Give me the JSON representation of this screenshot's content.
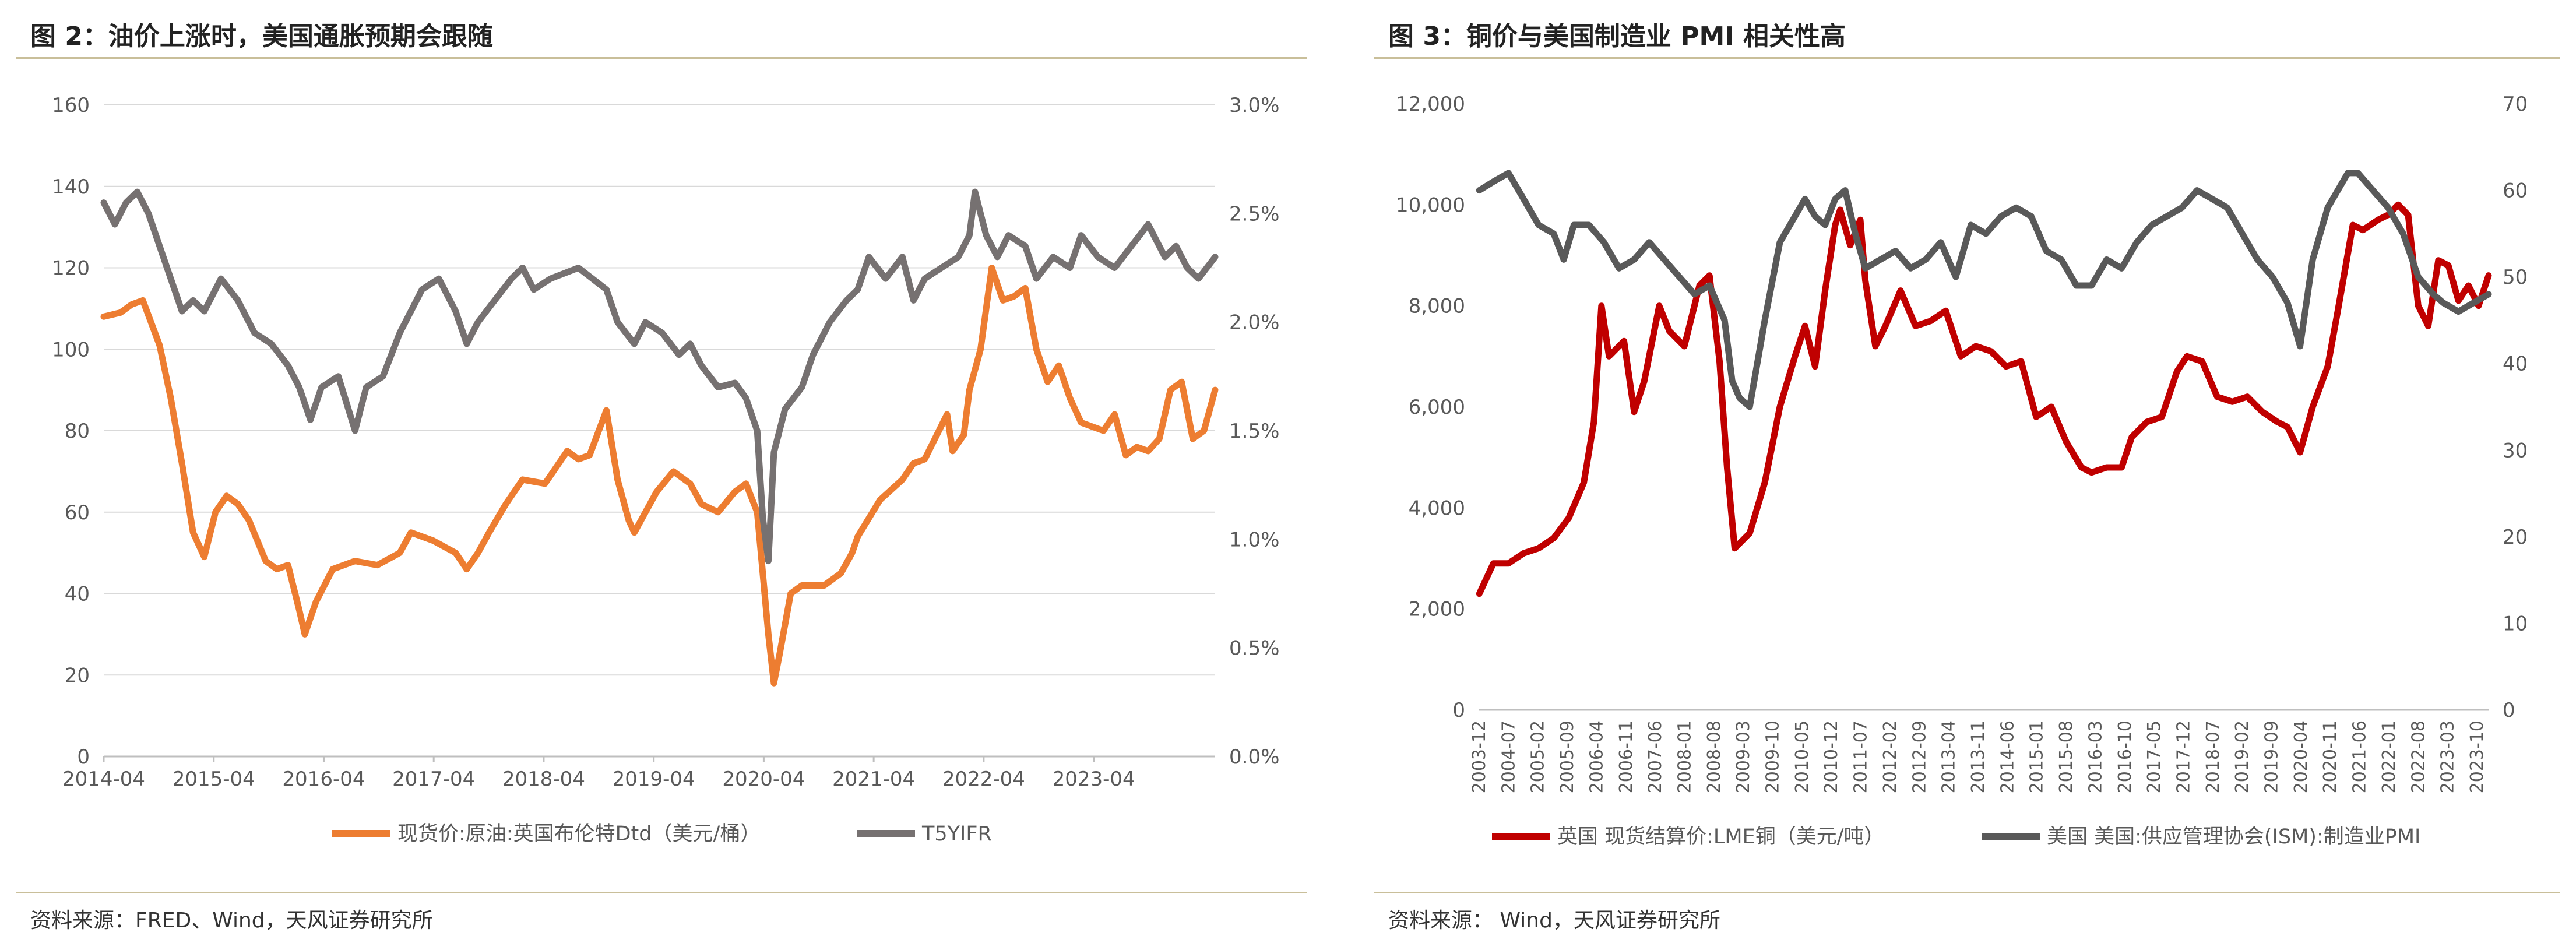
{
  "left": {
    "title": "图 2：油价上涨时，美国通胀预期会跟随",
    "source": "资料来源：FRED、Wind，天风证券研究所"
  },
  "right": {
    "title": "图 3：铜价与美国制造业 PMI 相关性高",
    "source": "资料来源： Wind，天风证券研究所"
  },
  "chart_data": [
    {
      "type": "line",
      "title": "图 2：油价上涨时，美国通胀预期会跟随",
      "x_ticks": [
        "2014-04",
        "2015-04",
        "2016-04",
        "2017-04",
        "2018-04",
        "2019-04",
        "2020-04",
        "2021-04",
        "2022-04",
        "2023-04"
      ],
      "x_range": [
        2014.25,
        2024.2
      ],
      "y_left": {
        "range": [
          0,
          160
        ],
        "ticks": [
          "0",
          "20",
          "40",
          "60",
          "80",
          "100",
          "120",
          "140",
          "160"
        ]
      },
      "y_right": {
        "range": [
          0,
          3.0
        ],
        "ticks": [
          "0.0%",
          "0.5%",
          "1.0%",
          "1.5%",
          "2.0%",
          "2.5%",
          "3.0%"
        ]
      },
      "legend_position": "bottom",
      "series": [
        {
          "name": "现货价:原油:英国布伦特Dtd（美元/桶）",
          "axis": "left",
          "color": "#ed7d31",
          "x": [
            2014.25,
            2014.4,
            2014.5,
            2014.6,
            2014.75,
            2014.85,
            2014.95,
            2015.05,
            2015.15,
            2015.25,
            2015.35,
            2015.45,
            2015.55,
            2015.7,
            2015.8,
            2015.9,
            2016.0,
            2016.05,
            2016.15,
            2016.3,
            2016.5,
            2016.7,
            2016.9,
            2017.0,
            2017.2,
            2017.4,
            2017.5,
            2017.6,
            2017.7,
            2017.85,
            2018.0,
            2018.2,
            2018.4,
            2018.5,
            2018.6,
            2018.75,
            2018.85,
            2018.95,
            2019.0,
            2019.2,
            2019.35,
            2019.5,
            2019.6,
            2019.75,
            2019.9,
            2020.0,
            2020.1,
            2020.2,
            2020.25,
            2020.3,
            2020.4,
            2020.5,
            2020.7,
            2020.85,
            2020.95,
            2021.0,
            2021.2,
            2021.4,
            2021.5,
            2021.6,
            2021.8,
            2021.85,
            2021.95,
            2022.0,
            2022.1,
            2022.2,
            2022.3,
            2022.4,
            2022.5,
            2022.6,
            2022.7,
            2022.8,
            2022.9,
            2023.0,
            2023.2,
            2023.3,
            2023.4,
            2023.5,
            2023.6,
            2023.7,
            2023.8,
            2023.9,
            2024.0,
            2024.1,
            2024.2
          ],
          "values": [
            108,
            109,
            111,
            112,
            101,
            88,
            72,
            55,
            49,
            60,
            64,
            62,
            58,
            48,
            46,
            47,
            36,
            30,
            38,
            46,
            48,
            47,
            50,
            55,
            53,
            50,
            46,
            50,
            55,
            62,
            68,
            67,
            75,
            73,
            74,
            85,
            68,
            58,
            55,
            65,
            70,
            67,
            62,
            60,
            65,
            67,
            60,
            30,
            18,
            25,
            40,
            42,
            42,
            45,
            50,
            54,
            63,
            68,
            72,
            73,
            84,
            75,
            79,
            90,
            100,
            120,
            112,
            113,
            115,
            100,
            92,
            96,
            88,
            82,
            80,
            84,
            74,
            76,
            75,
            78,
            90,
            92,
            78,
            80,
            90
          ]
        },
        {
          "name": "T5YIFR",
          "axis": "right",
          "color": "#767171",
          "x": [
            2014.25,
            2014.35,
            2014.45,
            2014.55,
            2014.65,
            2014.75,
            2014.85,
            2014.95,
            2015.05,
            2015.15,
            2015.3,
            2015.45,
            2015.6,
            2015.75,
            2015.9,
            2016.0,
            2016.1,
            2016.2,
            2016.35,
            2016.5,
            2016.6,
            2016.75,
            2016.9,
            2017.0,
            2017.1,
            2017.25,
            2017.4,
            2017.5,
            2017.6,
            2017.75,
            2017.9,
            2018.0,
            2018.1,
            2018.25,
            2018.5,
            2018.75,
            2018.85,
            2019.0,
            2019.1,
            2019.25,
            2019.4,
            2019.5,
            2019.6,
            2019.75,
            2019.9,
            2020.0,
            2020.1,
            2020.15,
            2020.2,
            2020.25,
            2020.35,
            2020.5,
            2020.6,
            2020.75,
            2020.9,
            2021.0,
            2021.1,
            2021.25,
            2021.4,
            2021.5,
            2021.6,
            2021.75,
            2021.9,
            2022.0,
            2022.05,
            2022.15,
            2022.25,
            2022.35,
            2022.5,
            2022.6,
            2022.75,
            2022.9,
            2023.0,
            2023.15,
            2023.3,
            2023.45,
            2023.6,
            2023.75,
            2023.85,
            2023.95,
            2024.05,
            2024.2
          ],
          "values": [
            2.55,
            2.45,
            2.55,
            2.6,
            2.5,
            2.35,
            2.2,
            2.05,
            2.1,
            2.05,
            2.2,
            2.1,
            1.95,
            1.9,
            1.8,
            1.7,
            1.55,
            1.7,
            1.75,
            1.5,
            1.7,
            1.75,
            1.95,
            2.05,
            2.15,
            2.2,
            2.05,
            1.9,
            2.0,
            2.1,
            2.2,
            2.25,
            2.15,
            2.2,
            2.25,
            2.15,
            2.0,
            1.9,
            2.0,
            1.95,
            1.85,
            1.9,
            1.8,
            1.7,
            1.72,
            1.65,
            1.5,
            1.1,
            0.9,
            1.4,
            1.6,
            1.7,
            1.85,
            2.0,
            2.1,
            2.15,
            2.3,
            2.2,
            2.3,
            2.1,
            2.2,
            2.25,
            2.3,
            2.4,
            2.6,
            2.4,
            2.3,
            2.4,
            2.35,
            2.2,
            2.3,
            2.25,
            2.4,
            2.3,
            2.25,
            2.35,
            2.45,
            2.3,
            2.35,
            2.25,
            2.2,
            2.3
          ]
        }
      ]
    },
    {
      "type": "line",
      "title": "图 3：铜价与美国制造业 PMI 相关性高",
      "x_ticks": [
        "2003-12",
        "2004-07",
        "2005-02",
        "2005-09",
        "2006-04",
        "2006-11",
        "2007-06",
        "2008-01",
        "2008-08",
        "2009-03",
        "2009-10",
        "2010-05",
        "2010-12",
        "2011-07",
        "2012-02",
        "2012-09",
        "2013-04",
        "2013-11",
        "2014-06",
        "2015-01",
        "2015-08",
        "2016-03",
        "2016-10",
        "2017-05",
        "2017-12",
        "2018-07",
        "2019-02",
        "2019-09",
        "2020-04",
        "2020-11",
        "2021-06",
        "2022-01",
        "2022-08",
        "2023-03",
        "2023-10"
      ],
      "x_range": [
        2003.917,
        2024.0
      ],
      "y_left": {
        "range": [
          0,
          12000
        ],
        "ticks": [
          "0",
          "2,000",
          "4,000",
          "6,000",
          "8,000",
          "10,000",
          "12,000"
        ]
      },
      "y_right": {
        "range": [
          0,
          70
        ],
        "ticks": [
          "0",
          "10",
          "20",
          "30",
          "40",
          "50",
          "60",
          "70"
        ]
      },
      "legend_position": "bottom",
      "series": [
        {
          "name": "英国 现货结算价:LME铜（美元/吨）",
          "axis": "left",
          "color": "#c00000",
          "x": [
            2003.92,
            2004.2,
            2004.5,
            2004.8,
            2005.1,
            2005.4,
            2005.7,
            2006.0,
            2006.2,
            2006.35,
            2006.5,
            2006.8,
            2007.0,
            2007.2,
            2007.5,
            2007.7,
            2008.0,
            2008.3,
            2008.5,
            2008.7,
            2008.85,
            2009.0,
            2009.3,
            2009.6,
            2009.9,
            2010.2,
            2010.4,
            2010.6,
            2010.8,
            2011.0,
            2011.1,
            2011.3,
            2011.5,
            2011.6,
            2011.8,
            2012.0,
            2012.3,
            2012.6,
            2012.9,
            2013.2,
            2013.5,
            2013.8,
            2014.1,
            2014.4,
            2014.7,
            2015.0,
            2015.3,
            2015.6,
            2015.9,
            2016.1,
            2016.4,
            2016.7,
            2016.9,
            2017.2,
            2017.5,
            2017.8,
            2018.0,
            2018.3,
            2018.6,
            2018.9,
            2019.2,
            2019.5,
            2019.8,
            2020.0,
            2020.25,
            2020.5,
            2020.8,
            2021.0,
            2021.3,
            2021.5,
            2021.8,
            2022.0,
            2022.2,
            2022.4,
            2022.6,
            2022.8,
            2023.0,
            2023.2,
            2023.4,
            2023.6,
            2023.8,
            2024.0
          ],
          "values": [
            2300,
            2900,
            2900,
            3100,
            3200,
            3400,
            3800,
            4500,
            5700,
            8000,
            7000,
            7300,
            5900,
            6500,
            8000,
            7500,
            7200,
            8400,
            8600,
            6900,
            4800,
            3200,
            3500,
            4500,
            6000,
            7000,
            7600,
            6800,
            8300,
            9600,
            9900,
            9200,
            9700,
            8500,
            7200,
            7600,
            8300,
            7600,
            7700,
            7900,
            7000,
            7200,
            7100,
            6800,
            6900,
            5800,
            6000,
            5300,
            4800,
            4700,
            4800,
            4800,
            5400,
            5700,
            5800,
            6700,
            7000,
            6900,
            6200,
            6100,
            6200,
            5900,
            5700,
            5600,
            5100,
            6000,
            6800,
            7900,
            9600,
            9500,
            9700,
            9800,
            10000,
            9800,
            8000,
            7600,
            8900,
            8800,
            8100,
            8400,
            8000,
            8600
          ]
        },
        {
          "name": "美国 美国:供应管理协会(ISM):制造业PMI",
          "axis": "right",
          "color": "#595959",
          "x": [
            2003.92,
            2004.2,
            2004.5,
            2004.8,
            2005.1,
            2005.4,
            2005.6,
            2005.8,
            2006.1,
            2006.4,
            2006.7,
            2007.0,
            2007.3,
            2007.6,
            2007.9,
            2008.2,
            2008.5,
            2008.8,
            2008.95,
            2009.1,
            2009.3,
            2009.6,
            2009.9,
            2010.2,
            2010.4,
            2010.6,
            2010.8,
            2011.0,
            2011.2,
            2011.4,
            2011.6,
            2011.9,
            2012.2,
            2012.5,
            2012.8,
            2013.1,
            2013.4,
            2013.7,
            2014.0,
            2014.3,
            2014.6,
            2014.9,
            2015.2,
            2015.5,
            2015.8,
            2016.1,
            2016.4,
            2016.7,
            2017.0,
            2017.3,
            2017.6,
            2017.9,
            2018.2,
            2018.5,
            2018.8,
            2019.1,
            2019.4,
            2019.7,
            2020.0,
            2020.25,
            2020.5,
            2020.8,
            2021.0,
            2021.2,
            2021.4,
            2021.7,
            2022.0,
            2022.3,
            2022.6,
            2022.9,
            2023.1,
            2023.4,
            2023.7,
            2024.0
          ],
          "values": [
            60,
            61,
            62,
            59,
            56,
            55,
            52,
            56,
            56,
            54,
            51,
            52,
            54,
            52,
            50,
            48,
            49,
            45,
            38,
            36,
            35,
            45,
            54,
            57,
            59,
            57,
            56,
            59,
            60,
            55,
            51,
            52,
            53,
            51,
            52,
            54,
            50,
            56,
            55,
            57,
            58,
            57,
            53,
            52,
            49,
            49,
            52,
            51,
            54,
            56,
            57,
            58,
            60,
            59,
            58,
            55,
            52,
            50,
            47,
            42,
            52,
            58,
            60,
            62,
            62,
            60,
            58,
            55,
            50,
            48,
            47,
            46,
            47,
            48
          ]
        }
      ]
    }
  ],
  "legend": {
    "left": [
      "现货价:原油:英国布伦特Dtd（美元/桶）",
      "T5YIFR"
    ],
    "right": [
      "英国 现货结算价:LME铜（美元/吨）",
      "美国 美国:供应管理协会(ISM):制造业PMI"
    ]
  }
}
